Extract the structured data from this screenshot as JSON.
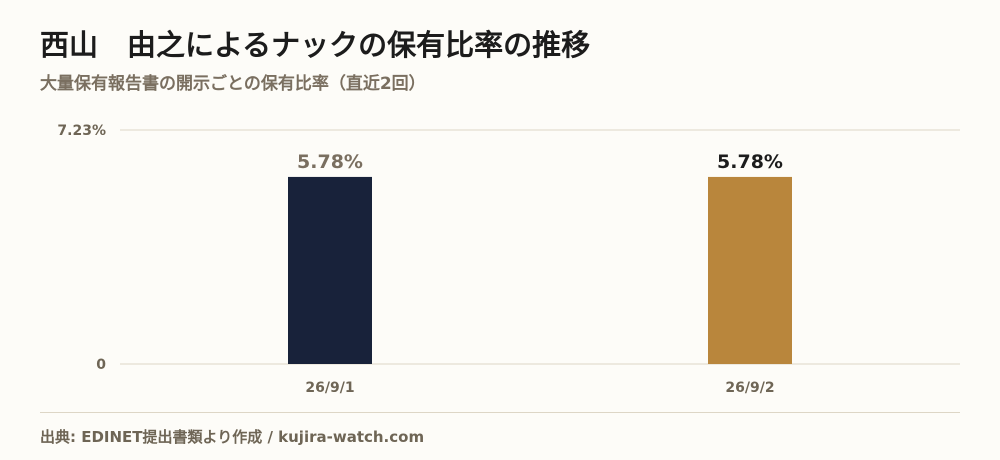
{
  "header": {
    "title": "西山　由之によるナックの保有比率の推移",
    "subtitle": "大量保有報告書の開示ごとの保有比率（直近2回）"
  },
  "footer": {
    "source": "出典: EDINET提出書類より作成 / kujira-watch.com"
  },
  "colors": {
    "bar_first": "#18223a",
    "bar_last": "#b9863c",
    "label_first": "#7a6f60",
    "label_last": "#1c1c1c",
    "grid": "#ddd6c6",
    "axis_text": "#6e6555"
  },
  "chart_data": {
    "type": "bar",
    "categories": [
      "26/9/1",
      "26/9/2"
    ],
    "values": [
      5.78,
      5.78
    ],
    "data_labels": [
      "5.78%",
      "5.78%"
    ],
    "ylim": [
      0,
      7.23
    ],
    "y_ticks": [
      {
        "value": 0,
        "label": "0"
      },
      {
        "value": 7.23,
        "label": "7.23%"
      }
    ],
    "grid": true,
    "legend": "none",
    "xlabel": "",
    "ylabel": ""
  }
}
